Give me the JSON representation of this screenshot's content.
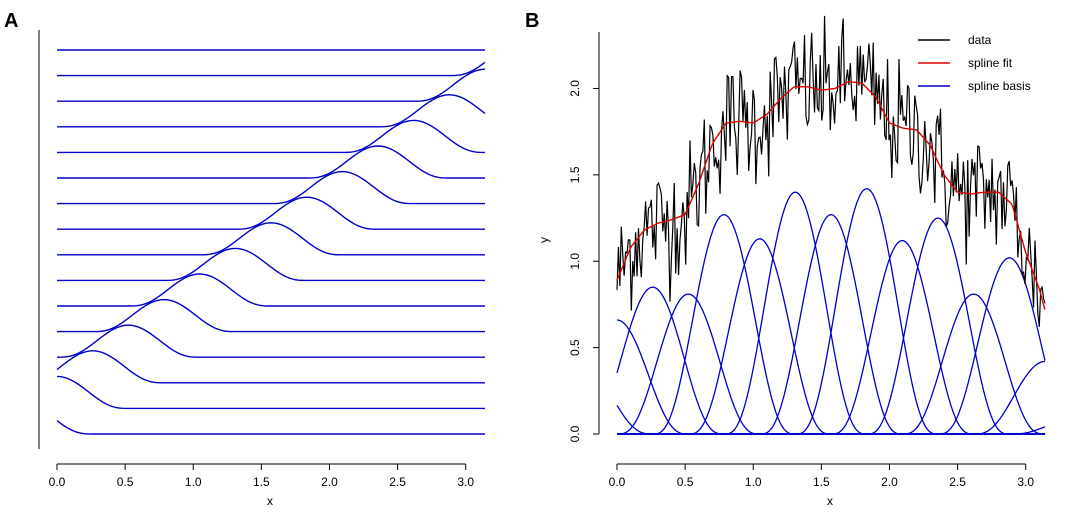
{
  "chart_data": [
    {
      "panel": "A",
      "type": "line",
      "xlabel": "x",
      "ylabel": "",
      "xlim": [
        0,
        3.1416
      ],
      "xticks": [
        "0.0",
        "0.5",
        "1.0",
        "1.5",
        "2.0",
        "2.5",
        "3.0"
      ],
      "y_axis_ticks": false,
      "n_curves": 16,
      "centers": [
        -0.262,
        0.0,
        0.262,
        0.524,
        0.785,
        1.047,
        1.309,
        1.571,
        1.833,
        2.094,
        2.356,
        2.618,
        2.88,
        3.142,
        3.403,
        3.665
      ],
      "bump_height": 0.6,
      "bump_halfwidth": 0.52,
      "color": "#0000CC"
    },
    {
      "panel": "B",
      "type": "line",
      "xlabel": "x",
      "ylabel": "y",
      "xlim": [
        0,
        3.1416
      ],
      "ylim": [
        0.0,
        2.35
      ],
      "xticks": [
        "0.0",
        "0.5",
        "1.0",
        "1.5",
        "2.0",
        "2.5",
        "3.0"
      ],
      "yticks": [
        "0.0",
        "0.5",
        "1.0",
        "1.5",
        "2.0"
      ],
      "legend": {
        "position": "top-right",
        "entries": [
          {
            "label": "data",
            "color": "#000000"
          },
          {
            "label": "spline fit",
            "color": "#DD0000"
          },
          {
            "label": "spline basis",
            "color": "#0000CC"
          }
        ]
      },
      "basis": {
        "centers": [
          -0.262,
          0.0,
          0.262,
          0.524,
          0.785,
          1.047,
          1.309,
          1.571,
          1.833,
          2.094,
          2.356,
          2.618,
          2.88,
          3.142,
          3.403
        ],
        "heights": [
          0.4,
          0.66,
          0.85,
          0.81,
          1.27,
          1.13,
          1.4,
          1.27,
          1.42,
          1.12,
          1.25,
          0.81,
          1.02,
          0.42,
          0.1
        ],
        "halfwidth": 0.52
      },
      "spline_fit": {
        "x": [
          0.0,
          0.1,
          0.2,
          0.3,
          0.4,
          0.5,
          0.6,
          0.7,
          0.8,
          0.9,
          1.0,
          1.1,
          1.2,
          1.3,
          1.4,
          1.5,
          1.6,
          1.7,
          1.8,
          1.9,
          2.0,
          2.1,
          2.2,
          2.3,
          2.4,
          2.5,
          2.6,
          2.7,
          2.8,
          2.9,
          3.0,
          3.1,
          3.14
        ],
        "y": [
          0.89,
          1.08,
          1.18,
          1.22,
          1.24,
          1.27,
          1.45,
          1.68,
          1.8,
          1.81,
          1.8,
          1.85,
          1.94,
          2.01,
          2.01,
          1.99,
          2.0,
          2.04,
          2.03,
          1.95,
          1.8,
          1.77,
          1.76,
          1.67,
          1.5,
          1.4,
          1.39,
          1.4,
          1.4,
          1.33,
          1.05,
          0.84,
          0.72
        ]
      },
      "data": {
        "n_points": 300,
        "noise_sd": 0.18
      }
    }
  ]
}
